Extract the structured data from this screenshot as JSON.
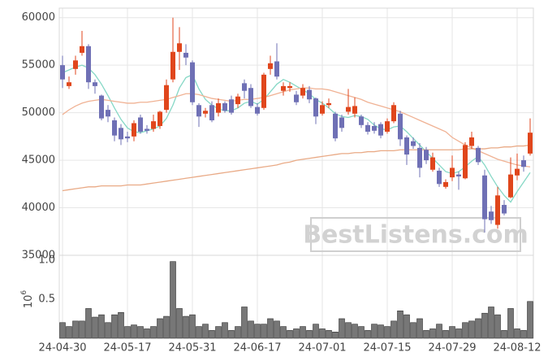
{
  "chart_data": [
    {
      "type": "candlestick",
      "up_color": "#e0461c",
      "down_color": "#6f70b5",
      "open": [
        55000,
        52800,
        54600,
        56300,
        57000,
        53200,
        51800,
        50300,
        49200,
        48400,
        47500,
        47500,
        49500,
        48300,
        48300,
        48600,
        50300,
        53500,
        56400,
        56300,
        55300,
        50800,
        49900,
        50800,
        50000,
        51000,
        51400,
        50900,
        53100,
        52600,
        50600,
        50500,
        54600,
        55400,
        52300,
        52600,
        51900,
        51800,
        52400,
        51500,
        49900,
        50800,
        49900,
        49500,
        50100,
        49900,
        49600,
        48700,
        48600,
        48800,
        48000,
        49100,
        49900,
        47400,
        47000,
        46300,
        46100,
        44000,
        43900,
        42200,
        43200,
        43500,
        43100,
        46500,
        46300,
        43400,
        39600,
        38200,
        40300,
        41100,
        43400,
        45000,
        45700
      ],
      "high": [
        56000,
        53800,
        56000,
        58600,
        57200,
        53500,
        51900,
        50800,
        49500,
        48800,
        48000,
        49200,
        49800,
        48700,
        49800,
        50200,
        53500,
        60000,
        59000,
        57200,
        55500,
        51000,
        50500,
        51200,
        51500,
        51200,
        51800,
        52000,
        53500,
        53000,
        51000,
        54200,
        56000,
        57300,
        53200,
        53200,
        52300,
        53000,
        52800,
        51600,
        51200,
        51500,
        50100,
        49800,
        52500,
        51600,
        49800,
        49000,
        49000,
        49000,
        49400,
        51100,
        50200,
        47600,
        47400,
        46800,
        46400,
        45800,
        44200,
        43000,
        45500,
        43800,
        46900,
        48000,
        46500,
        44000,
        40200,
        42200,
        40800,
        45300,
        45700,
        45500,
        49400
      ],
      "low": [
        52600,
        52500,
        54000,
        56000,
        52500,
        52000,
        49200,
        49000,
        47000,
        46600,
        46900,
        47000,
        47800,
        47800,
        48000,
        48300,
        50000,
        53200,
        54500,
        55000,
        50800,
        48500,
        49500,
        49000,
        49600,
        50000,
        49800,
        50500,
        51500,
        50500,
        49700,
        50300,
        54000,
        53500,
        51800,
        52200,
        50800,
        51500,
        51000,
        48800,
        49700,
        50500,
        47000,
        48000,
        49800,
        49500,
        48400,
        47700,
        47800,
        47300,
        47800,
        48900,
        46500,
        44500,
        46200,
        43200,
        44600,
        43800,
        42200,
        42000,
        42800,
        41900,
        43000,
        46200,
        44500,
        37400,
        38300,
        37800,
        39200,
        41000,
        42900,
        43800,
        45500
      ],
      "close": [
        53500,
        53200,
        55500,
        57000,
        53200,
        52800,
        49400,
        49600,
        47600,
        47200,
        47300,
        48900,
        48000,
        48100,
        49100,
        50100,
        52900,
        56400,
        57300,
        55800,
        51100,
        49600,
        50200,
        49200,
        51000,
        50200,
        50000,
        51700,
        52300,
        50700,
        49900,
        54000,
        55200,
        53800,
        52800,
        52800,
        51100,
        52600,
        51400,
        49600,
        50800,
        51000,
        47300,
        48400,
        50600,
        50700,
        48700,
        48000,
        48100,
        47600,
        49100,
        50800,
        47200,
        45600,
        46500,
        44200,
        45000,
        45300,
        42500,
        42700,
        44200,
        43300,
        46600,
        47400,
        44800,
        38800,
        38700,
        41300,
        39400,
        43500,
        44100,
        44300,
        47900
      ],
      "lines": [
        {
          "color": "#86d8c6",
          "values": [
            54200,
            54500,
            54800,
            55000,
            54700,
            54000,
            53000,
            51800,
            50500,
            49300,
            48400,
            48000,
            47900,
            48100,
            48300,
            48600,
            49400,
            50800,
            52600,
            53700,
            54000,
            52500,
            51400,
            50800,
            50400,
            50200,
            50200,
            50500,
            51000,
            51200,
            50900,
            51400,
            52200,
            53000,
            53500,
            53200,
            52800,
            52400,
            52000,
            51400,
            51000,
            50500,
            49900,
            49600,
            49500,
            49700,
            49600,
            49300,
            48700,
            48300,
            48200,
            48500,
            48600,
            48000,
            47300,
            46600,
            45900,
            45200,
            44500,
            43800,
            43600,
            43800,
            44300,
            44900,
            45400,
            44500,
            43300,
            42200,
            41300,
            40600,
            41700,
            42700,
            43700
          ]
        },
        {
          "color": "#f0b294",
          "values": [
            49800,
            50300,
            50700,
            51000,
            51200,
            51300,
            51400,
            51300,
            51200,
            51100,
            51000,
            51000,
            51100,
            51100,
            51200,
            51300,
            51400,
            51600,
            51800,
            52000,
            52000,
            51900,
            51700,
            51500,
            51400,
            51300,
            51200,
            51300,
            51400,
            51400,
            51500,
            51600,
            51800,
            52000,
            52200,
            52400,
            52500,
            52600,
            52600,
            52500,
            52500,
            52400,
            52200,
            52000,
            51800,
            51600,
            51400,
            51100,
            50900,
            50700,
            50500,
            50300,
            50100,
            49800,
            49500,
            49200,
            48900,
            48600,
            48300,
            48000,
            47400,
            47000,
            46600,
            46300,
            46000,
            45700,
            45400,
            45100,
            44900,
            44700,
            44500,
            44400,
            44300
          ]
        },
        {
          "color": "#e9aa86",
          "values": [
            41800,
            41900,
            42000,
            42100,
            42200,
            42200,
            42300,
            42300,
            42300,
            42300,
            42400,
            42400,
            42400,
            42500,
            42600,
            42700,
            42800,
            42900,
            43000,
            43100,
            43200,
            43300,
            43400,
            43500,
            43600,
            43700,
            43800,
            43900,
            44000,
            44100,
            44200,
            44300,
            44400,
            44500,
            44700,
            44800,
            45000,
            45100,
            45200,
            45300,
            45400,
            45500,
            45600,
            45700,
            45700,
            45800,
            45800,
            45900,
            45900,
            46000,
            46000,
            46000,
            46100,
            46100,
            46100,
            46100,
            46100,
            46100,
            46100,
            46100,
            46100,
            46100,
            46200,
            46200,
            46200,
            46200,
            46300,
            46300,
            46400,
            46400,
            46500,
            46500,
            46600
          ]
        }
      ],
      "ylim": [
        35000,
        61000
      ],
      "yticks": [
        35000,
        40000,
        45000,
        50000,
        55000,
        60000
      ],
      "grid": true,
      "watermark": "BestListens.com"
    },
    {
      "type": "bar",
      "color": "#777777",
      "categories": [
        "24-04-30",
        null,
        null,
        null,
        null,
        null,
        null,
        null,
        null,
        null,
        "24-05-17",
        null,
        null,
        null,
        null,
        null,
        null,
        null,
        null,
        null,
        "24-05-31",
        null,
        null,
        null,
        null,
        null,
        null,
        null,
        null,
        null,
        "24-06-17",
        null,
        null,
        null,
        null,
        null,
        null,
        null,
        null,
        null,
        "24-07-01",
        null,
        null,
        null,
        null,
        null,
        null,
        null,
        null,
        null,
        "24-07-15",
        null,
        null,
        null,
        null,
        null,
        null,
        null,
        null,
        null,
        "24-07-29",
        null,
        null,
        null,
        null,
        null,
        null,
        null,
        null,
        null,
        "24-08-12",
        null,
        null
      ],
      "values": [
        0.2,
        0.15,
        0.22,
        0.22,
        0.38,
        0.27,
        0.3,
        0.2,
        0.3,
        0.33,
        0.15,
        0.17,
        0.15,
        0.12,
        0.15,
        0.25,
        0.28,
        0.98,
        0.38,
        0.28,
        0.3,
        0.15,
        0.18,
        0.1,
        0.15,
        0.2,
        0.1,
        0.15,
        0.4,
        0.22,
        0.18,
        0.18,
        0.25,
        0.22,
        0.15,
        0.1,
        0.12,
        0.15,
        0.1,
        0.18,
        0.12,
        0.1,
        0.08,
        0.25,
        0.2,
        0.18,
        0.15,
        0.1,
        0.18,
        0.17,
        0.15,
        0.22,
        0.35,
        0.3,
        0.2,
        0.25,
        0.1,
        0.12,
        0.18,
        0.1,
        0.15,
        0.12,
        0.2,
        0.22,
        0.25,
        0.32,
        0.4,
        0.3,
        0.1,
        0.38,
        0.12,
        0.1,
        0.47
      ],
      "ylim": [
        0,
        1.06
      ],
      "yticks": [
        0.5,
        {
          "value": 1,
          "label": "1.0"
        }
      ],
      "exponent": {
        "base": "10",
        "power": "6"
      }
    }
  ]
}
